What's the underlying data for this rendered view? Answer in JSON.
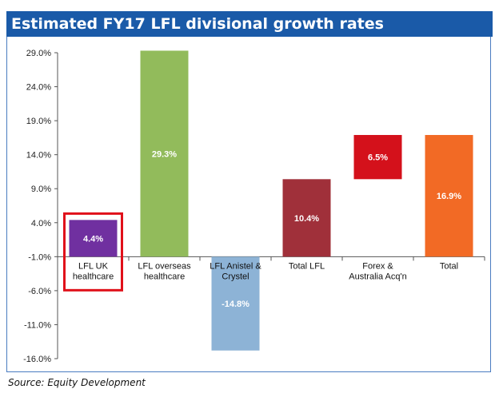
{
  "title": "Estimated FY17 LFL divisional growth rates",
  "source": "Source: Equity Development",
  "chart_data": {
    "type": "bar",
    "subtype": "waterfall",
    "title": "Estimated FY17 LFL divisional growth rates",
    "xlabel": "",
    "ylabel": "",
    "ylim": [
      -16.0,
      29.0
    ],
    "y_ticks": [
      "29.0%",
      "24.0%",
      "19.0%",
      "14.0%",
      "9.0%",
      "4.0%",
      "-1.0%",
      "-6.0%",
      "-11.0%",
      "-16.0%"
    ],
    "grid": false,
    "legend": "none",
    "categories": [
      [
        "LFL UK",
        "healthcare"
      ],
      [
        "LFL overseas",
        "healthcare"
      ],
      [
        "LFL Anistel &",
        "Crystel"
      ],
      [
        "Total  LFL"
      ],
      [
        "Forex &",
        "Australia Acq'n"
      ],
      [
        "Total"
      ]
    ],
    "bars": [
      {
        "start": 0.0,
        "end": 4.4,
        "label": "4.4%",
        "color": "#7030a0",
        "highlight": true
      },
      {
        "start": 0.0,
        "end": 29.3,
        "label": "29.3%",
        "color": "#92bb5b",
        "highlight": false
      },
      {
        "start": 0.0,
        "end": -14.8,
        "label": "-14.8%",
        "color": "#8db3d6",
        "highlight": false
      },
      {
        "start": 0.0,
        "end": 10.4,
        "label": "10.4%",
        "color": "#a0303a",
        "highlight": false
      },
      {
        "start": 10.4,
        "end": 16.9,
        "label": "6.5%",
        "color": "#d4111b",
        "highlight": false
      },
      {
        "start": 0.0,
        "end": 16.9,
        "label": "16.9%",
        "color": "#f26a25",
        "highlight": false
      }
    ],
    "highlight_color": "#e0101a"
  }
}
